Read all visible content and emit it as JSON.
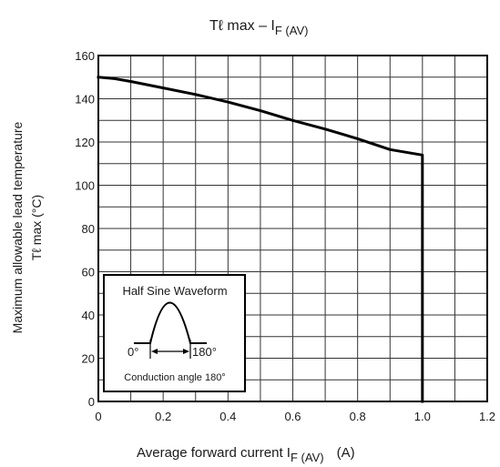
{
  "chart_data": {
    "type": "line",
    "title": {
      "main": "Tℓ  max – I",
      "sub": "F (AV)"
    },
    "xlabel": {
      "main": "Average forward current   I",
      "sub": "F (AV)",
      "unit": "(A)"
    },
    "ylabel": {
      "line1": "Maximum allowable lead temperature",
      "line2": "Tℓ  max    (°C)"
    },
    "xlim": [
      0,
      1.2
    ],
    "ylim": [
      0,
      160
    ],
    "x_ticks": [
      "0",
      "0.2",
      "0.4",
      "0.6",
      "0.8",
      "1.0",
      "1.2"
    ],
    "y_ticks": [
      "0",
      "20",
      "40",
      "60",
      "80",
      "100",
      "120",
      "140",
      "160"
    ],
    "grid": true,
    "series": [
      {
        "x": [
          0,
          0.05,
          0.1,
          0.2,
          0.3,
          0.4,
          0.5,
          0.6,
          0.7,
          0.8,
          0.9,
          1.0,
          1.0
        ],
        "y": [
          150,
          149.3,
          148,
          145,
          142,
          138.5,
          134.5,
          130,
          126,
          121.5,
          116.5,
          114,
          0
        ]
      }
    ],
    "inset": {
      "title": "Half Sine Waveform",
      "left_label": "0°",
      "right_label": "180°",
      "caption": "Conduction angle 180°"
    }
  }
}
